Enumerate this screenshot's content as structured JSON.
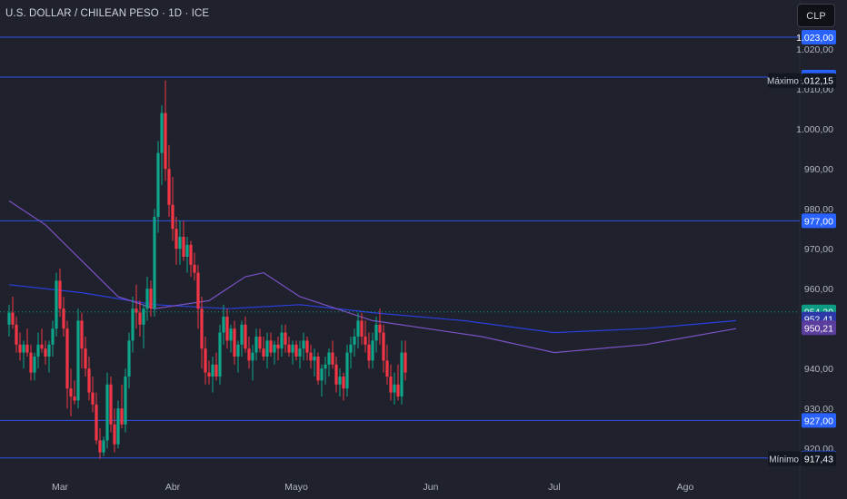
{
  "header": {
    "title": "U.S. DOLLAR / CHILEAN PESO · 1D · ICE",
    "currency_button": "CLP"
  },
  "chart_data": {
    "type": "candlestick",
    "instrument": "U.S. DOLLAR / CHILEAN PESO",
    "interval": "1D",
    "source": "ICE",
    "currency": "CLP",
    "ylim": [
      915,
      1025
    ],
    "y_ticks": [
      {
        "value": 920,
        "label": "920,00"
      },
      {
        "value": 930,
        "label": "930,00"
      },
      {
        "value": 940,
        "label": "940,00"
      },
      {
        "value": 950,
        "label": "950,00"
      },
      {
        "value": 960,
        "label": "960,00"
      },
      {
        "value": 970,
        "label": "970,00"
      },
      {
        "value": 980,
        "label": "980,00"
      },
      {
        "value": 990,
        "label": "990,00"
      },
      {
        "value": 1000,
        "label": "1.000,00"
      },
      {
        "value": 1010,
        "label": "1.010,00"
      },
      {
        "value": 1020,
        "label": "1.020,00"
      }
    ],
    "x_ticks": [
      {
        "index": 14,
        "label": "Mar"
      },
      {
        "index": 45,
        "label": "Abr"
      },
      {
        "index": 79,
        "label": "Mayo"
      },
      {
        "index": 116,
        "label": "Jun"
      },
      {
        "index": 150,
        "label": "Jul"
      },
      {
        "index": 186,
        "label": "Ago"
      }
    ],
    "horizontal_levels": [
      {
        "value": 1023.0,
        "label": "1.023,00"
      },
      {
        "value": 1013.0,
        "label": "1.013,00"
      },
      {
        "value": 977.0,
        "label": "977,00"
      },
      {
        "value": 927.0,
        "label": "927,00"
      },
      {
        "value": 917.6,
        "label": "917,60"
      }
    ],
    "badges": [
      {
        "value": 1012.15,
        "label": "1.012,15",
        "tag": "Máximo",
        "color": "#131722"
      },
      {
        "value": 954.2,
        "label": "954,20",
        "color": "#0c9c84"
      },
      {
        "value": 952.41,
        "label": "952,41",
        "color": "#2d38a8"
      },
      {
        "value": 950.21,
        "label": "950,21",
        "color": "#5b3d9e"
      },
      {
        "value": 917.43,
        "label": "917,43",
        "tag": "Mínimo",
        "color": "#131722"
      }
    ],
    "last_price": 954.2,
    "candles": [
      [
        951,
        956,
        948,
        954
      ],
      [
        954,
        958,
        950,
        951
      ],
      [
        951,
        953,
        944,
        946
      ],
      [
        946,
        949,
        942,
        944
      ],
      [
        944,
        947,
        940,
        946
      ],
      [
        946,
        950,
        943,
        944
      ],
      [
        944,
        946,
        937,
        939
      ],
      [
        939,
        944,
        937,
        943
      ],
      [
        943,
        949,
        940,
        946
      ],
      [
        946,
        950,
        944,
        945
      ],
      [
        945,
        947,
        941,
        943
      ],
      [
        943,
        947,
        939,
        946
      ],
      [
        946,
        952,
        943,
        950
      ],
      [
        950,
        964,
        948,
        962
      ],
      [
        962,
        965,
        953,
        955
      ],
      [
        955,
        958,
        948,
        950
      ],
      [
        950,
        952,
        930,
        935
      ],
      [
        935,
        940,
        928,
        933
      ],
      [
        933,
        937,
        931,
        932
      ],
      [
        932,
        955,
        930,
        952
      ],
      [
        952,
        954,
        940,
        945
      ],
      [
        945,
        948,
        938,
        940
      ],
      [
        940,
        943,
        932,
        934
      ],
      [
        934,
        938,
        929,
        931
      ],
      [
        931,
        934,
        921,
        922
      ],
      [
        922,
        925,
        917.4,
        919
      ],
      [
        919,
        923,
        918,
        922
      ],
      [
        922,
        939,
        920,
        936
      ],
      [
        936,
        938,
        924,
        926
      ],
      [
        926,
        930,
        919,
        921
      ],
      [
        921,
        932,
        920,
        930
      ],
      [
        930,
        936,
        925,
        926
      ],
      [
        926,
        940,
        924,
        938
      ],
      [
        938,
        949,
        935,
        947
      ],
      [
        947,
        958,
        944,
        955
      ],
      [
        955,
        961,
        950,
        954
      ],
      [
        954,
        957,
        948,
        951
      ],
      [
        951,
        956,
        945,
        955
      ],
      [
        955,
        963,
        952,
        960
      ],
      [
        960,
        962,
        953,
        955
      ],
      [
        955,
        980,
        953,
        978
      ],
      [
        978,
        997,
        974,
        994
      ],
      [
        994,
        1006,
        986,
        1004
      ],
      [
        1004,
        1012.15,
        987,
        990
      ],
      [
        990,
        996,
        978,
        981
      ],
      [
        981,
        988,
        972,
        975
      ],
      [
        975,
        978,
        966,
        970
      ],
      [
        970,
        977,
        966,
        973
      ],
      [
        973,
        977,
        967,
        968
      ],
      [
        968,
        973,
        964,
        971
      ],
      [
        971,
        972,
        963,
        966
      ],
      [
        966,
        969,
        962,
        964
      ],
      [
        964,
        966,
        950,
        955
      ],
      [
        955,
        958,
        940,
        945
      ],
      [
        945,
        948,
        936,
        939
      ],
      [
        939,
        942,
        936,
        938
      ],
      [
        938,
        943,
        934,
        941
      ],
      [
        941,
        944,
        937,
        938
      ],
      [
        938,
        951,
        936,
        949
      ],
      [
        949,
        956,
        946,
        953
      ],
      [
        953,
        955,
        945,
        947
      ],
      [
        947,
        951,
        944,
        950
      ],
      [
        950,
        952,
        941,
        943
      ],
      [
        943,
        947,
        939,
        946
      ],
      [
        946,
        952,
        943,
        951
      ],
      [
        951,
        953,
        944,
        945
      ],
      [
        945,
        948,
        940,
        942
      ],
      [
        942,
        946,
        937,
        944
      ],
      [
        944,
        950,
        942,
        948
      ],
      [
        948,
        950,
        944,
        945
      ],
      [
        945,
        948,
        942,
        943
      ],
      [
        943,
        949,
        940,
        947
      ],
      [
        947,
        949,
        943,
        944
      ],
      [
        944,
        947,
        941,
        946
      ],
      [
        946,
        948,
        942,
        945
      ],
      [
        945,
        951,
        943,
        949
      ],
      [
        949,
        951,
        944,
        946
      ],
      [
        946,
        948,
        943,
        944
      ],
      [
        944,
        947,
        941,
        946
      ],
      [
        946,
        947,
        942,
        943
      ],
      [
        943,
        947,
        940,
        945
      ],
      [
        945,
        949,
        942,
        947
      ],
      [
        947,
        948,
        942,
        944
      ],
      [
        944,
        946,
        940,
        942
      ],
      [
        942,
        945,
        938,
        943
      ],
      [
        943,
        944,
        936,
        937
      ],
      [
        937,
        941,
        933,
        940
      ],
      [
        940,
        943,
        936,
        941
      ],
      [
        941,
        945,
        938,
        944
      ],
      [
        944,
        947,
        940,
        941
      ],
      [
        941,
        943,
        934,
        936
      ],
      [
        936,
        940,
        933,
        938
      ],
      [
        938,
        939,
        932,
        935
      ],
      [
        935,
        946,
        933,
        944
      ],
      [
        944,
        948,
        940,
        946
      ],
      [
        946,
        950,
        943,
        948
      ],
      [
        948,
        954,
        945,
        952
      ],
      [
        952,
        954,
        946,
        948
      ],
      [
        948,
        952,
        944,
        946
      ],
      [
        946,
        949,
        940,
        942
      ],
      [
        942,
        949,
        940,
        947
      ],
      [
        947,
        953,
        944,
        951
      ],
      [
        951,
        955,
        946,
        949
      ],
      [
        949,
        951,
        939,
        942
      ],
      [
        942,
        946,
        936,
        938
      ],
      [
        938,
        941,
        932,
        934
      ],
      [
        934,
        939,
        931,
        936
      ],
      [
        936,
        941,
        932,
        933
      ],
      [
        933,
        947,
        931,
        944
      ],
      [
        944,
        947,
        937,
        939
      ]
    ],
    "moving_averages": [
      {
        "name": "Blue MA",
        "color": "#2a3fe0",
        "values": [
          [
            0,
            961
          ],
          [
            20,
            959
          ],
          [
            40,
            956
          ],
          [
            60,
            955
          ],
          [
            80,
            956
          ],
          [
            100,
            954
          ],
          [
            125,
            952
          ],
          [
            150,
            949
          ],
          [
            175,
            950
          ],
          [
            200,
            952
          ]
        ]
      },
      {
        "name": "Purple MA",
        "color": "#7b52c6",
        "values": [
          [
            0,
            982
          ],
          [
            10,
            976
          ],
          [
            20,
            967
          ],
          [
            30,
            958
          ],
          [
            40,
            955
          ],
          [
            55,
            957
          ],
          [
            65,
            963
          ],
          [
            70,
            964
          ],
          [
            80,
            958
          ],
          [
            100,
            952
          ],
          [
            130,
            948
          ],
          [
            150,
            944
          ],
          [
            175,
            946
          ],
          [
            200,
            950
          ]
        ]
      }
    ]
  }
}
